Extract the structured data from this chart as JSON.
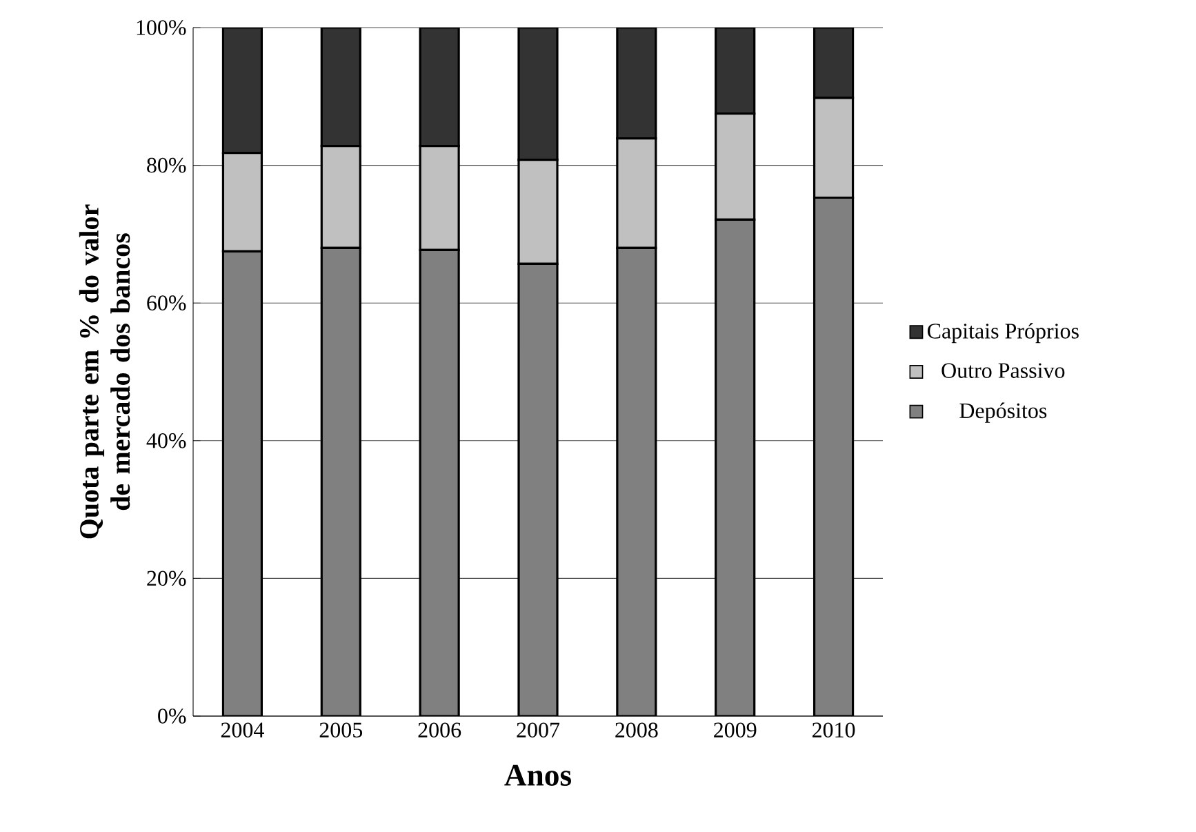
{
  "chart_data": {
    "type": "bar",
    "stacked": true,
    "xlabel": "Anos",
    "ylabel": "Quota parte em % do valor de mercado dos bancos",
    "categories": [
      "2004",
      "2005",
      "2006",
      "2007",
      "2008",
      "2009",
      "2010"
    ],
    "series": [
      {
        "name": "Depósitos",
        "color": "#808080",
        "values": [
          67.5,
          68,
          67.7,
          65.7,
          68,
          72.1,
          75.3
        ]
      },
      {
        "name": "Outro Passivo",
        "color": "#c0c0c0",
        "values": [
          14.3,
          14.8,
          15.1,
          15.1,
          15.9,
          15.4,
          14.5
        ]
      },
      {
        "name": "Capitais Próprios",
        "color": "#333333",
        "values": [
          18.2,
          17.2,
          17.2,
          19.2,
          16.1,
          12.5,
          10.2
        ]
      }
    ],
    "ylim": [
      0,
      100
    ],
    "yticks": [
      {
        "value": 0,
        "label": "0%"
      },
      {
        "value": 20,
        "label": "20%"
      },
      {
        "value": 40,
        "label": "40%"
      },
      {
        "value": 60,
        "label": "60%"
      },
      {
        "value": 80,
        "label": "80%"
      },
      {
        "value": 100,
        "label": "100%"
      }
    ],
    "grid": "y",
    "legend": "right"
  }
}
